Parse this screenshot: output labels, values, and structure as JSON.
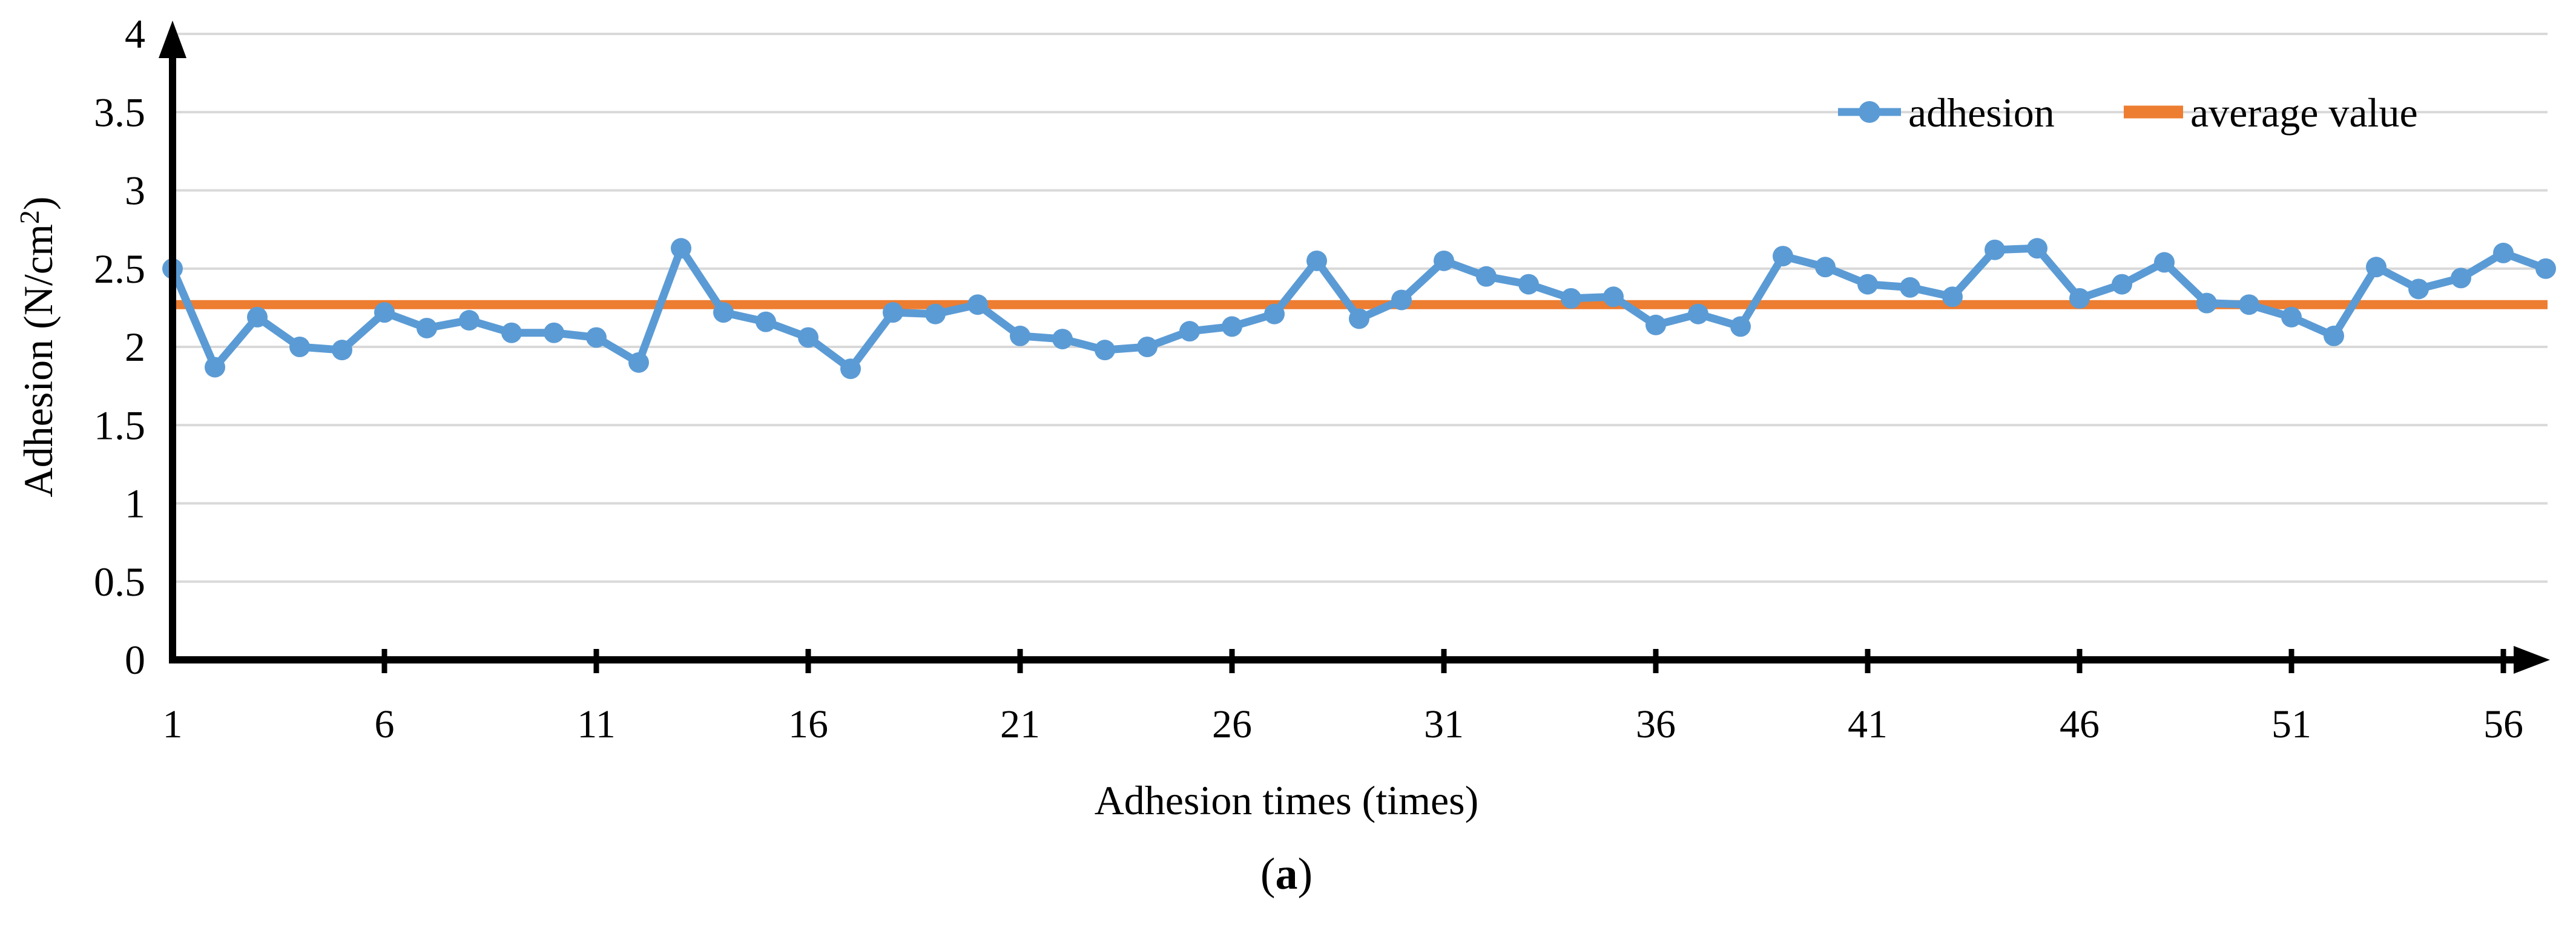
{
  "figure": {
    "caption_prefix": "(",
    "caption_letter": "a",
    "caption_suffix": ")"
  },
  "legend": {
    "adhesion_label": "adhesion",
    "average_label": "average value"
  },
  "colors": {
    "series_blue": "#5B9BD5",
    "series_orange": "#ED7D31",
    "gridline": "#D9D9D9",
    "axis": "#000000",
    "background": "#FFFFFF"
  },
  "chart_data": {
    "type": "line",
    "title": "",
    "xlabel": "Adhesion times (times)",
    "ylabel": "Adhesion (N/cm²)",
    "ylabel_main": "Adhesion (N/cm",
    "ylabel_sup": "2",
    "ylabel_close": ")",
    "x": [
      1,
      2,
      3,
      4,
      5,
      6,
      7,
      8,
      9,
      10,
      11,
      12,
      13,
      14,
      15,
      16,
      17,
      18,
      19,
      20,
      21,
      22,
      23,
      24,
      25,
      26,
      27,
      28,
      29,
      30,
      31,
      32,
      33,
      34,
      35,
      36,
      37,
      38,
      39,
      40,
      41,
      42,
      43,
      44,
      45,
      46,
      47,
      48,
      49,
      50,
      51,
      52,
      53,
      54,
      55,
      56,
      57
    ],
    "series": [
      {
        "name": "adhesion",
        "color": "#5B9BD5",
        "marker": "circle",
        "values": [
          2.5,
          1.87,
          2.19,
          2.0,
          1.98,
          2.22,
          2.12,
          2.17,
          2.09,
          2.09,
          2.06,
          1.9,
          2.63,
          2.22,
          2.16,
          2.06,
          1.86,
          2.22,
          2.21,
          2.27,
          2.07,
          2.05,
          1.98,
          2.0,
          2.1,
          2.13,
          2.21,
          2.55,
          2.18,
          2.3,
          2.55,
          2.45,
          2.4,
          2.31,
          2.32,
          2.14,
          2.21,
          2.13,
          2.58,
          2.51,
          2.4,
          2.38,
          2.32,
          2.62,
          2.63,
          2.31,
          2.4,
          2.54,
          2.28,
          2.27,
          2.19,
          2.07,
          2.51,
          2.37,
          2.44,
          2.6,
          2.5
        ]
      },
      {
        "name": "average value",
        "color": "#ED7D31",
        "type": "hline",
        "value": 2.27
      }
    ],
    "average_value": 2.27,
    "ylim": [
      0,
      4
    ],
    "yticks": [
      0,
      0.5,
      1,
      1.5,
      2,
      2.5,
      3,
      3.5,
      4
    ],
    "ytick_labels": [
      "0",
      "0.5",
      "1",
      "1.5",
      "2",
      "2.5",
      "3",
      "3.5",
      "4"
    ],
    "xticks": [
      1,
      6,
      11,
      16,
      21,
      26,
      31,
      36,
      41,
      46,
      51,
      56
    ],
    "xtick_labels": [
      "1",
      "6",
      "11",
      "16",
      "21",
      "26",
      "31",
      "36",
      "41",
      "46",
      "51",
      "56"
    ],
    "grid": "horizontal-only",
    "legend_position": "top-right",
    "axis_arrows": true
  }
}
